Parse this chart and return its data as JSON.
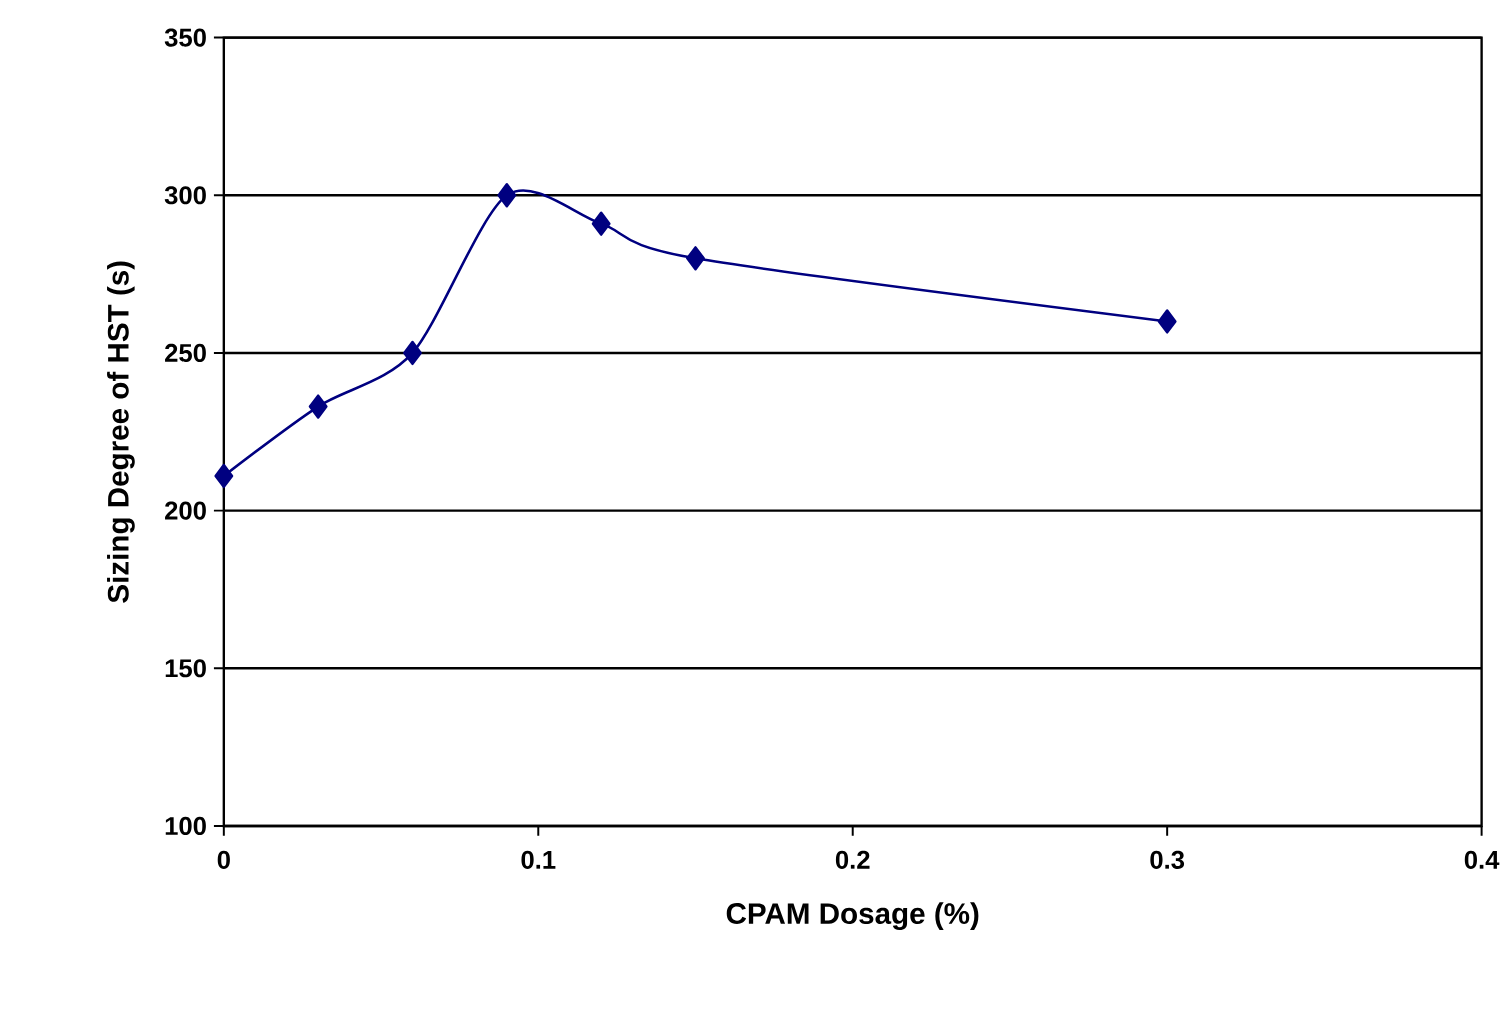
{
  "chart_data": {
    "type": "line",
    "xlabel": "CPAM Dosage (%)",
    "ylabel": "Sizing Degree of HST (s)",
    "x": [
      0,
      0.03,
      0.06,
      0.09,
      0.12,
      0.15,
      0.3
    ],
    "series": [
      {
        "color": "#000080",
        "values": [
          211,
          233,
          250,
          300,
          291,
          280,
          260
        ]
      }
    ],
    "xlim": [
      0,
      0.4
    ],
    "ylim": [
      100,
      350
    ],
    "xticks": [
      0,
      0.1,
      0.2,
      0.3,
      0.4
    ],
    "yticks": [
      100,
      150,
      200,
      250,
      300,
      350
    ],
    "grid": "y",
    "marker": "diamond",
    "line_style": "solid"
  }
}
